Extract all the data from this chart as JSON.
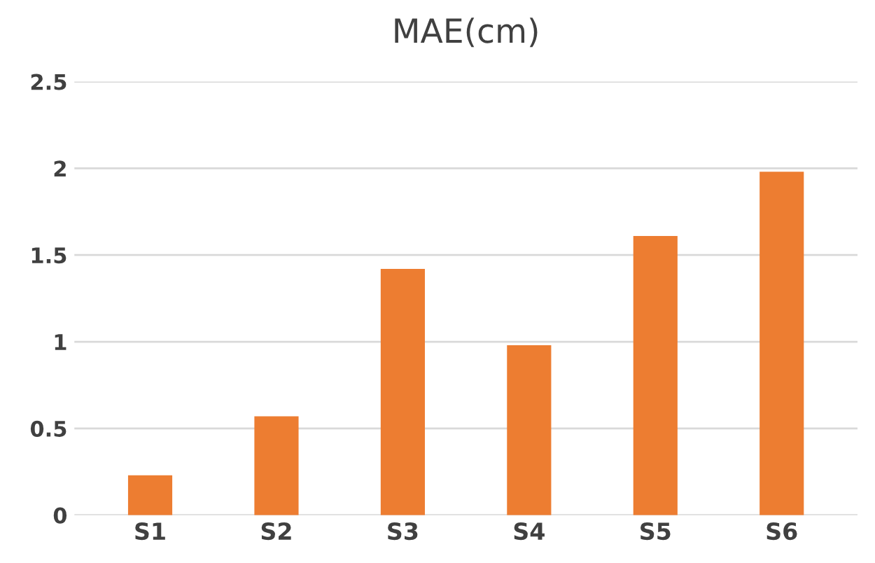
{
  "chart_data": {
    "type": "bar",
    "title": "MAE(cm)",
    "categories": [
      "S1",
      "S2",
      "S3",
      "S4",
      "S5",
      "S6"
    ],
    "values": [
      0.23,
      0.57,
      1.42,
      0.98,
      1.61,
      1.98
    ],
    "color": "#ed7d31",
    "ylim": [
      0,
      2.5
    ],
    "yticks": [
      0,
      0.5,
      1,
      1.5,
      2,
      2.5
    ],
    "grid": "y"
  }
}
